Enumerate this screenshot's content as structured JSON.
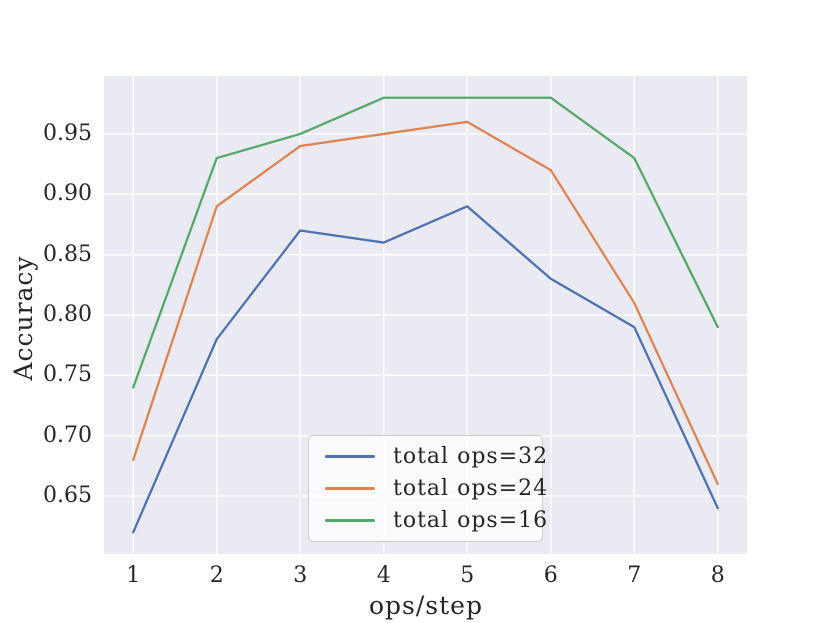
{
  "chart_data": {
    "type": "line",
    "title": "",
    "xlabel": "ops/step",
    "ylabel": "Accuracy",
    "x": [
      1,
      2,
      3,
      4,
      5,
      6,
      7,
      8
    ],
    "series": [
      {
        "name": "total ops=32",
        "color": "#4C72B0",
        "values": [
          0.62,
          0.78,
          0.87,
          0.86,
          0.89,
          0.83,
          0.79,
          0.64
        ]
      },
      {
        "name": "total ops=24",
        "color": "#DD8452",
        "values": [
          0.68,
          0.89,
          0.94,
          0.95,
          0.96,
          0.92,
          0.81,
          0.66
        ]
      },
      {
        "name": "total ops=16",
        "color": "#55A868",
        "values": [
          0.74,
          0.93,
          0.95,
          0.98,
          0.98,
          0.98,
          0.93,
          0.79
        ]
      }
    ],
    "xticks": [
      "1",
      "2",
      "3",
      "4",
      "5",
      "6",
      "7",
      "8"
    ],
    "yticks": [
      "0.65",
      "0.70",
      "0.75",
      "0.80",
      "0.85",
      "0.90",
      "0.95"
    ],
    "xlim": [
      0.65,
      8.35
    ],
    "ylim": [
      0.602,
      0.998
    ],
    "grid": true,
    "legend": {
      "position": "lower-center",
      "entries": [
        "total ops=32",
        "total ops=24",
        "total ops=16"
      ]
    },
    "colors": {
      "figure_bg": "#FFFFFF",
      "plot_bg": "#EAEAF2",
      "grid": "#FFFFFF",
      "text": "#262626",
      "legend_border": "#CCCCCC"
    }
  }
}
